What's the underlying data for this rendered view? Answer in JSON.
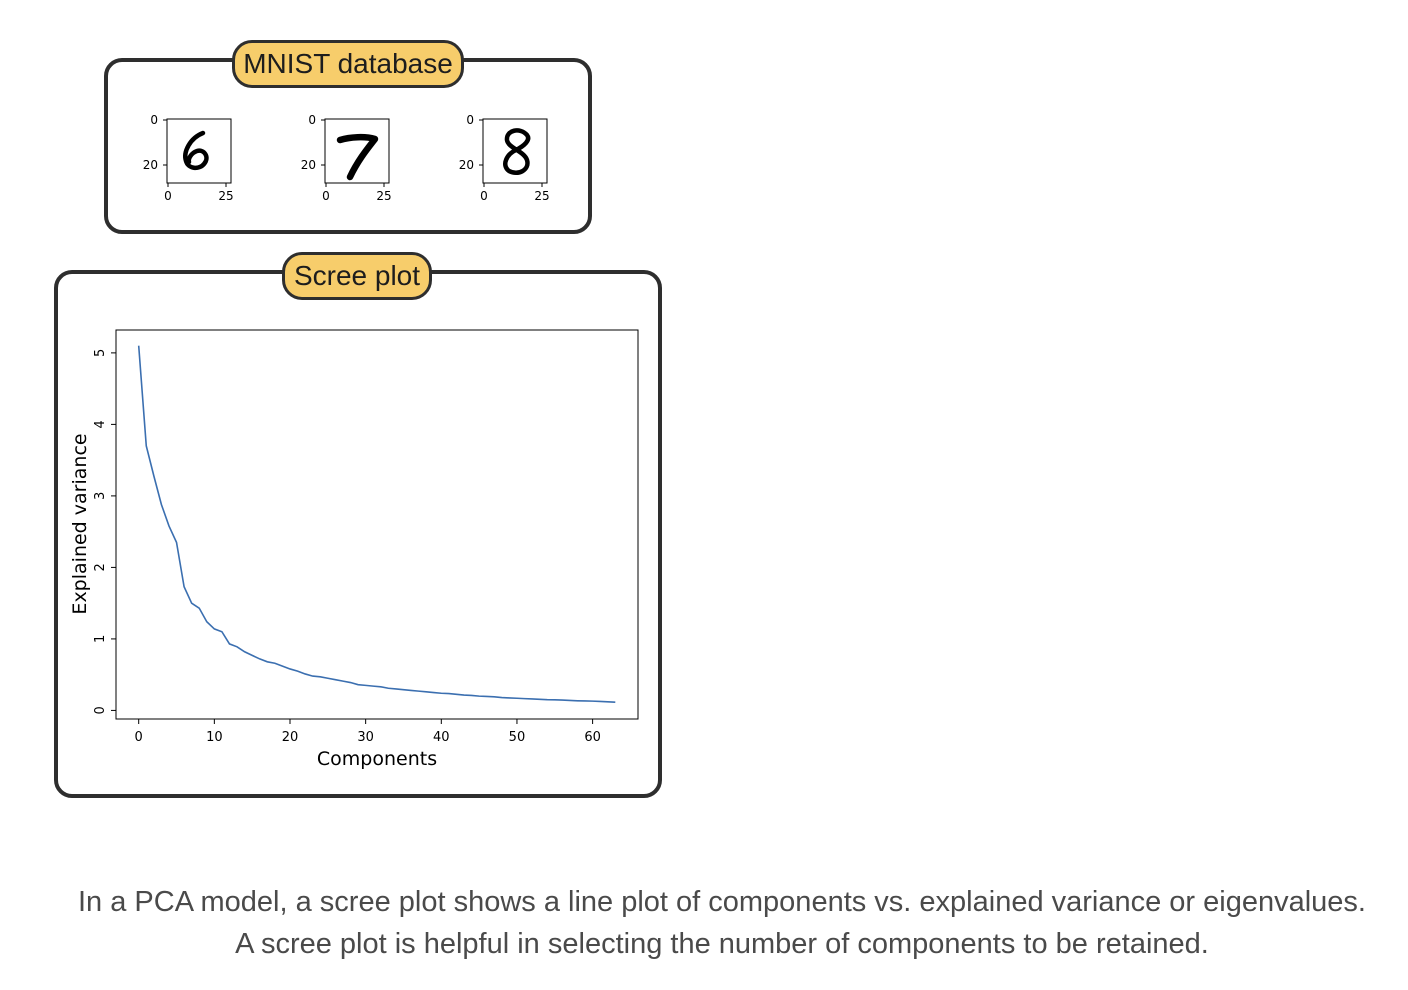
{
  "mnist_panel": {
    "title": "MNIST database",
    "digits": [
      {
        "digit": "6",
        "y_ticks": [
          "0",
          "20"
        ],
        "x_ticks": [
          "0",
          "25"
        ]
      },
      {
        "digit": "7",
        "y_ticks": [
          "0",
          "20"
        ],
        "x_ticks": [
          "0",
          "25"
        ]
      },
      {
        "digit": "8",
        "y_ticks": [
          "0",
          "20"
        ],
        "x_ticks": [
          "0",
          "25"
        ]
      }
    ]
  },
  "scree_panel": {
    "title": "Scree plot"
  },
  "chart_data": {
    "type": "line",
    "title": "",
    "xlabel": "Components",
    "ylabel": "Explained variance",
    "xlim": [
      -3,
      66
    ],
    "ylim": [
      -0.12,
      5.32
    ],
    "xticks": [
      0,
      10,
      20,
      30,
      40,
      50,
      60
    ],
    "yticks": [
      0,
      1,
      2,
      3,
      4,
      5
    ],
    "grid": false,
    "legend": "none",
    "series": [
      {
        "color": "#3b6fb0",
        "x": [
          0,
          1,
          2,
          3,
          4,
          5,
          6,
          7,
          8,
          9,
          10,
          11,
          12,
          13,
          14,
          15,
          16,
          17,
          18,
          19,
          20,
          21,
          22,
          23,
          24,
          25,
          26,
          27,
          28,
          29,
          30,
          31,
          32,
          33,
          34,
          35,
          36,
          37,
          38,
          39,
          40,
          41,
          42,
          43,
          44,
          45,
          46,
          47,
          48,
          49,
          50,
          51,
          52,
          53,
          54,
          55,
          56,
          57,
          58,
          59,
          60,
          61,
          62,
          63
        ],
        "y": [
          5.1,
          3.7,
          3.28,
          2.88,
          2.58,
          2.35,
          1.73,
          1.5,
          1.43,
          1.24,
          1.14,
          1.1,
          0.93,
          0.89,
          0.82,
          0.77,
          0.72,
          0.68,
          0.66,
          0.62,
          0.58,
          0.55,
          0.51,
          0.48,
          0.47,
          0.45,
          0.43,
          0.41,
          0.39,
          0.36,
          0.35,
          0.34,
          0.33,
          0.31,
          0.3,
          0.29,
          0.28,
          0.27,
          0.26,
          0.25,
          0.24,
          0.235,
          0.225,
          0.215,
          0.21,
          0.2,
          0.195,
          0.19,
          0.18,
          0.175,
          0.17,
          0.165,
          0.16,
          0.155,
          0.15,
          0.148,
          0.145,
          0.14,
          0.135,
          0.132,
          0.13,
          0.125,
          0.12,
          0.115
        ]
      }
    ]
  },
  "caption": {
    "line1": "In a PCA model, a scree plot shows a line plot of components vs. explained variance or eigenvalues.",
    "line2": "A scree plot is helpful in selecting the number of components to be retained."
  }
}
